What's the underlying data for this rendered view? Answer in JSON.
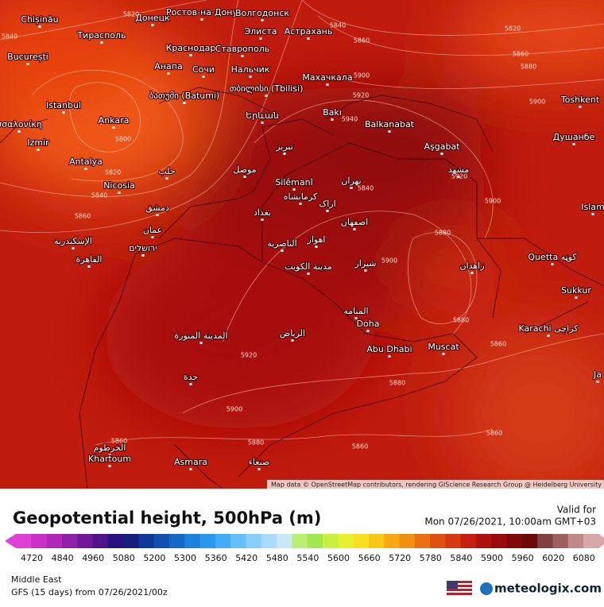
{
  "map": {
    "cities": [
      "Chișinău",
      "Тирасполь",
      "București",
      "Istanbul",
      "Ankara",
      "Izmir",
      "Antalya",
      "Nicosia",
      "Донецк",
      "Ростов-на-Дону",
      "Волгодонск",
      "Элиста",
      "Астрахань",
      "Краснодар",
      "Ставрополь",
      "Анапа",
      "Сочи",
      "Нальчик",
      "Махачкала",
      "ბათუმი (Batumi)",
      "თბილისი (Tbilisi)",
      "Երևան",
      "Bakı",
      "Balkanabat",
      "Aşgabat",
      "Toshkent",
      "Душанбе",
      "Silêmanî",
      "تهران",
      "مشهد",
      "موصل",
      "تبریز",
      "حلب",
      "دمشق",
      "عمان",
      "ירושלים",
      "الإسكندرية",
      "القاهرة",
      "بغداد",
      "كرمانشاه",
      "اراک",
      "اصفهان",
      "اهواز",
      "الناصرية",
      "مدينة الكويت",
      "شیراز",
      "زاهدان",
      "Quetta کوټه",
      "Islam",
      "Sukkur",
      "Karachi کراچی",
      "المنامة",
      "Doha",
      "Abu Dhabi",
      "Muscat",
      "الرياض",
      "المدينة المنورة",
      "جدة",
      "الخرطوم",
      "Khartoum",
      "Asmara",
      "صنعاء",
      "Ja",
      "σσαλονίκη"
    ],
    "contour_labels": [
      5840,
      5820,
      5840,
      5860,
      5820,
      5860,
      5880,
      5900,
      5920,
      5940,
      5900,
      5800,
      5820,
      5840,
      5860,
      5840,
      5920,
      5900,
      5880,
      5900,
      5880,
      5860,
      5920,
      5880,
      5900,
      5880,
      5860,
      5860,
      5860
    ],
    "attribution": "Map data © OpenStreetMap contributors, rendering GIScience Research Group @ Heidelberg University"
  },
  "header": {
    "title": "Geopotential height, 500hPa (m)",
    "valid_label": "Valid for",
    "valid_time": "Mon 07/26/2021, 10:00am GMT+03"
  },
  "legend": {
    "ticks": [
      4720,
      4840,
      4960,
      5080,
      5200,
      5300,
      5360,
      5420,
      5480,
      5540,
      5600,
      5660,
      5720,
      5780,
      5840,
      5900,
      5960,
      6020,
      6080
    ]
  },
  "footer": {
    "region": "Middle East",
    "model": "GFS (15 days) from 07/26/2021/00z",
    "brand": "meteologix.com"
  }
}
